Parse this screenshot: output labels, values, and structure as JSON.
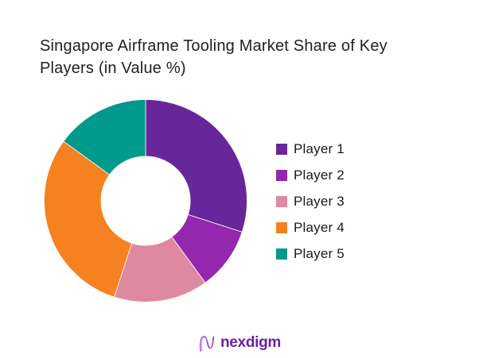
{
  "title": {
    "full": "Singapore Airframe Tooling Market Share of Key Players (in Value %)",
    "line1": "Singapore Airframe Tooling Market Share of Key",
    "line2": "Players (in Value %)"
  },
  "chart_data": {
    "type": "pie",
    "subtype": "donut",
    "title": "Singapore Airframe Tooling Market Share of Key Players (in Value %)",
    "unit": "percent of market value",
    "categories": [
      "Player 1",
      "Player 2",
      "Player 3",
      "Player 4",
      "Player 5"
    ],
    "values": [
      30,
      10,
      15,
      30,
      15
    ],
    "colors": [
      "#67279A",
      "#9327AE",
      "#DF88A2",
      "#F58121",
      "#009A8C"
    ],
    "start_angle_deg": 0,
    "direction": "clockwise",
    "inner_radius_ratio": 0.44,
    "legend_position": "right",
    "data_labels": "none"
  },
  "legend": {
    "items": [
      {
        "label": "Player 1",
        "color": "#67279A"
      },
      {
        "label": "Player 2",
        "color": "#9327AE"
      },
      {
        "label": "Player 3",
        "color": "#DF88A2"
      },
      {
        "label": "Player 4",
        "color": "#F58121"
      },
      {
        "label": "Player 5",
        "color": "#009A8C"
      }
    ]
  },
  "footer": {
    "brand": "nexdigm",
    "brand_color": "#6E1FA3",
    "logo_icon": "nexdigm-n-wave-icon"
  }
}
